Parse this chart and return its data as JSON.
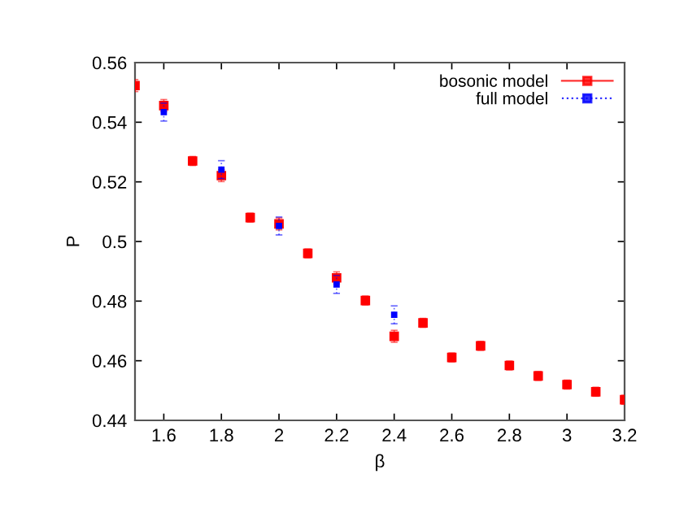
{
  "chart_data": {
    "type": "scatter",
    "xlabel": "β",
    "ylabel": "P",
    "xlim": [
      1.5,
      3.2
    ],
    "ylim": [
      0.44,
      0.56
    ],
    "xticks": [
      1.6,
      1.8,
      2,
      2.2,
      2.4,
      2.6,
      2.8,
      3,
      3.2
    ],
    "yticks": [
      0.44,
      0.46,
      0.48,
      0.5,
      0.52,
      0.54,
      0.56
    ],
    "legend": "top right",
    "grid": false,
    "marker": "square",
    "series": [
      {
        "name": "bosonic model",
        "color": "#ff0000",
        "line_style": "solid",
        "x": [
          1.5,
          1.6,
          1.7,
          1.8,
          1.9,
          2.0,
          2.1,
          2.2,
          2.3,
          2.4,
          2.5,
          2.6,
          2.7,
          2.8,
          2.9,
          3.0,
          3.1,
          3.2
        ],
        "values": [
          0.5523,
          0.5456,
          0.527,
          0.5221,
          0.508,
          0.5059,
          0.496,
          0.4878,
          0.4802,
          0.4682,
          0.4727,
          0.4611,
          0.465,
          0.4584,
          0.4549,
          0.452,
          0.4496,
          0.4469
        ],
        "errors": [
          0.002,
          0.002,
          0.0015,
          0.002,
          0.0015,
          0.002,
          0.0015,
          0.002,
          0.0015,
          0.002,
          0.0015,
          0.0015,
          0.0015,
          0.0015,
          0.0015,
          0.0015,
          0.0015,
          0.0015
        ]
      },
      {
        "name": "full model",
        "color": "#0000ff",
        "line_style": "dotted",
        "x": [
          1.6,
          1.8,
          2.0,
          2.2,
          2.4
        ],
        "values": [
          0.5434,
          0.5241,
          0.5052,
          0.4856,
          0.4754
        ],
        "errors": [
          0.003,
          0.003,
          0.003,
          0.003,
          0.003
        ]
      }
    ]
  }
}
